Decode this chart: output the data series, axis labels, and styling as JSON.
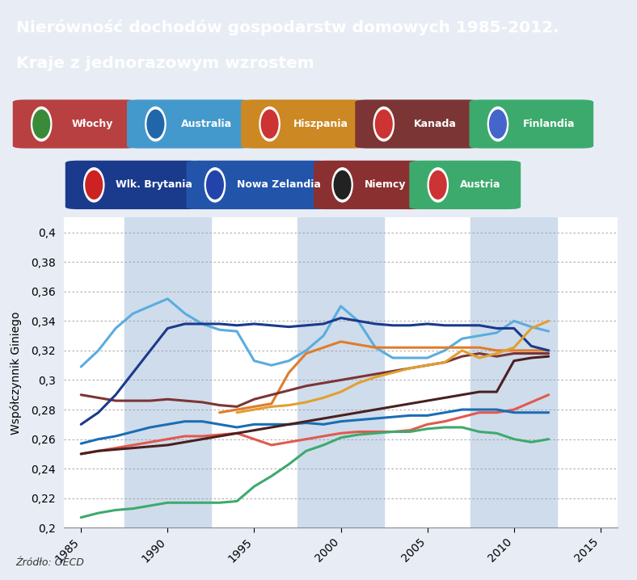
{
  "title_line1": "Nierówność dochodów gospodarstw domowych 1985-2012.",
  "title_line2": "Kraje z jednorazowym wzrostem",
  "title_bg_color": "#1a2f6b",
  "title_text_color": "#ffffff",
  "ylabel": "Współczynnik Giniego",
  "source": "Źródło: OECD",
  "ylim": [
    0.2,
    0.41
  ],
  "yticks": [
    0.2,
    0.22,
    0.24,
    0.26,
    0.28,
    0.3,
    0.32,
    0.34,
    0.36,
    0.38,
    0.4
  ],
  "xlim": [
    1984,
    2016
  ],
  "xticks": [
    1985,
    1990,
    1995,
    2000,
    2005,
    2010,
    2015
  ],
  "plot_bg_color": "#ffffff",
  "fig_bg_color": "#e8edf5",
  "grid_color": "#999999",
  "stripe_color": "#cfdcec",
  "series": [
    {
      "name": "Włochy",
      "color": "#e05a4e",
      "lw": 2.2,
      "years": [
        1985,
        1986,
        1987,
        1988,
        1989,
        1990,
        1991,
        1992,
        1993,
        1994,
        1995,
        1996,
        1997,
        1998,
        1999,
        2000,
        2001,
        2002,
        2003,
        2004,
        2005,
        2006,
        2007,
        2008,
        2009,
        2010,
        2011,
        2012
      ],
      "values": [
        0.25,
        0.252,
        0.254,
        0.256,
        0.258,
        0.26,
        0.262,
        0.262,
        0.263,
        0.264,
        0.26,
        0.256,
        0.258,
        0.26,
        0.262,
        0.264,
        0.265,
        0.265,
        0.265,
        0.266,
        0.27,
        0.272,
        0.275,
        0.278,
        0.278,
        0.28,
        0.285,
        0.29
      ]
    },
    {
      "name": "Australia",
      "color": "#5aadde",
      "lw": 2.2,
      "years": [
        1985,
        1986,
        1987,
        1988,
        1989,
        1990,
        1991,
        1992,
        1993,
        1994,
        1995,
        1996,
        1997,
        1998,
        1999,
        2000,
        2001,
        2002,
        2003,
        2004,
        2005,
        2006,
        2007,
        2008,
        2009,
        2010,
        2011,
        2012
      ],
      "values": [
        0.309,
        0.32,
        0.335,
        0.345,
        0.35,
        0.355,
        0.345,
        0.338,
        0.334,
        0.333,
        0.313,
        0.31,
        0.313,
        0.32,
        0.33,
        0.35,
        0.34,
        0.322,
        0.315,
        0.315,
        0.315,
        0.32,
        0.328,
        0.33,
        0.332,
        0.34,
        0.336,
        0.333
      ]
    },
    {
      "name": "Hiszpania",
      "color": "#e07c2a",
      "lw": 2.2,
      "years": [
        1993,
        1994,
        1995,
        1996,
        1997,
        1998,
        1999,
        2000,
        2001,
        2002,
        2003,
        2004,
        2005,
        2006,
        2007,
        2008,
        2009,
        2010,
        2011,
        2012
      ],
      "values": [
        0.278,
        0.28,
        0.282,
        0.284,
        0.305,
        0.318,
        0.322,
        0.326,
        0.324,
        0.322,
        0.322,
        0.322,
        0.322,
        0.322,
        0.322,
        0.322,
        0.32,
        0.32,
        0.32,
        0.32
      ]
    },
    {
      "name": "Kanada",
      "color": "#7b3535",
      "lw": 2.2,
      "years": [
        1985,
        1986,
        1987,
        1988,
        1989,
        1990,
        1991,
        1992,
        1993,
        1994,
        1995,
        1996,
        1997,
        1998,
        1999,
        2000,
        2001,
        2002,
        2003,
        2004,
        2005,
        2006,
        2007,
        2008,
        2009,
        2010,
        2011,
        2012
      ],
      "values": [
        0.29,
        0.288,
        0.286,
        0.286,
        0.286,
        0.287,
        0.286,
        0.285,
        0.283,
        0.282,
        0.287,
        0.29,
        0.293,
        0.296,
        0.298,
        0.3,
        0.302,
        0.304,
        0.306,
        0.308,
        0.31,
        0.312,
        0.316,
        0.318,
        0.316,
        0.318,
        0.318,
        0.318
      ]
    },
    {
      "name": "Finlandia",
      "color": "#3daa6d",
      "lw": 2.2,
      "years": [
        1985,
        1986,
        1987,
        1988,
        1989,
        1990,
        1991,
        1992,
        1993,
        1994,
        1995,
        1996,
        1997,
        1998,
        1999,
        2000,
        2001,
        2002,
        2003,
        2004,
        2005,
        2006,
        2007,
        2008,
        2009,
        2010,
        2011,
        2012
      ],
      "values": [
        0.207,
        0.21,
        0.212,
        0.213,
        0.215,
        0.217,
        0.217,
        0.217,
        0.217,
        0.218,
        0.228,
        0.235,
        0.243,
        0.252,
        0.256,
        0.261,
        0.263,
        0.264,
        0.265,
        0.265,
        0.267,
        0.268,
        0.268,
        0.265,
        0.264,
        0.26,
        0.258,
        0.26
      ]
    },
    {
      "name": "Wlk. Brytania",
      "color": "#1a3a8c",
      "lw": 2.2,
      "years": [
        1985,
        1986,
        1987,
        1988,
        1989,
        1990,
        1991,
        1992,
        1993,
        1994,
        1995,
        1996,
        1997,
        1998,
        1999,
        2000,
        2001,
        2002,
        2003,
        2004,
        2005,
        2006,
        2007,
        2008,
        2009,
        2010,
        2011,
        2012
      ],
      "values": [
        0.27,
        0.278,
        0.29,
        0.305,
        0.32,
        0.335,
        0.338,
        0.338,
        0.338,
        0.337,
        0.338,
        0.337,
        0.336,
        0.337,
        0.338,
        0.342,
        0.34,
        0.338,
        0.337,
        0.337,
        0.338,
        0.337,
        0.337,
        0.337,
        0.335,
        0.335,
        0.323,
        0.32
      ]
    },
    {
      "name": "Nowa Zelandia",
      "color": "#1a6eb5",
      "lw": 2.2,
      "years": [
        1985,
        1986,
        1987,
        1988,
        1989,
        1990,
        1991,
        1992,
        1993,
        1994,
        1995,
        1996,
        1997,
        1998,
        1999,
        2000,
        2001,
        2002,
        2003,
        2004,
        2005,
        2006,
        2007,
        2008,
        2009,
        2010,
        2011,
        2012
      ],
      "values": [
        0.257,
        0.26,
        0.262,
        0.265,
        0.268,
        0.27,
        0.272,
        0.272,
        0.27,
        0.268,
        0.27,
        0.27,
        0.27,
        0.271,
        0.27,
        0.272,
        0.273,
        0.274,
        0.275,
        0.276,
        0.276,
        0.278,
        0.28,
        0.28,
        0.28,
        0.278,
        0.278,
        0.278
      ]
    },
    {
      "name": "Niemcy",
      "color": "#4a2020",
      "lw": 2.2,
      "years": [
        1985,
        1986,
        1987,
        1988,
        1989,
        1990,
        1991,
        1992,
        1993,
        1994,
        1995,
        1996,
        1997,
        1998,
        1999,
        2000,
        2001,
        2002,
        2003,
        2004,
        2005,
        2006,
        2007,
        2008,
        2009,
        2010,
        2011,
        2012
      ],
      "values": [
        0.25,
        0.252,
        0.253,
        0.254,
        0.255,
        0.256,
        0.258,
        0.26,
        0.262,
        0.264,
        0.266,
        0.268,
        0.27,
        0.272,
        0.274,
        0.276,
        0.278,
        0.28,
        0.282,
        0.284,
        0.286,
        0.288,
        0.29,
        0.292,
        0.292,
        0.313,
        0.315,
        0.316
      ]
    },
    {
      "name": "Austria",
      "color": "#e0a030",
      "lw": 2.2,
      "years": [
        1994,
        1995,
        1996,
        1997,
        1998,
        1999,
        2000,
        2001,
        2002,
        2003,
        2004,
        2005,
        2006,
        2007,
        2008,
        2009,
        2010,
        2011,
        2012
      ],
      "values": [
        0.278,
        0.28,
        0.282,
        0.283,
        0.285,
        0.288,
        0.292,
        0.298,
        0.302,
        0.305,
        0.308,
        0.31,
        0.312,
        0.32,
        0.315,
        0.318,
        0.322,
        0.335,
        0.34
      ]
    }
  ],
  "legend_row1": [
    {
      "name": "Włochy",
      "pill_color": "#b84040",
      "icon_color": "#3a8a3a"
    },
    {
      "name": "Australia",
      "pill_color": "#4499cc",
      "icon_color": "#2266aa"
    },
    {
      "name": "Hiszpania",
      "pill_color": "#cc8822",
      "icon_color": "#cc3333"
    },
    {
      "name": "Kanada",
      "pill_color": "#7b3535",
      "icon_color": "#cc3333"
    },
    {
      "name": "Finlandia",
      "pill_color": "#3daa6d",
      "icon_color": "#4466cc"
    }
  ],
  "legend_row2": [
    {
      "name": "Wlk. Brytania",
      "pill_color": "#1a3a8c",
      "icon_color": "#cc2222"
    },
    {
      "name": "Nowa Zelandia",
      "pill_color": "#2255aa",
      "icon_color": "#2244aa"
    },
    {
      "name": "Niemcy",
      "pill_color": "#8b3030",
      "icon_color": "#222222"
    },
    {
      "name": "Austria",
      "pill_color": "#3daa6d",
      "icon_color": "#cc3333"
    }
  ],
  "stripe_ranges": [
    [
      1987.5,
      1992.5
    ],
    [
      1997.5,
      2002.5
    ],
    [
      2007.5,
      2012.5
    ]
  ]
}
